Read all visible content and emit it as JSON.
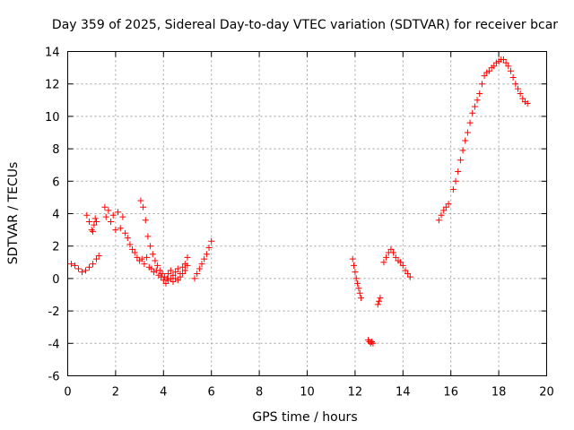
{
  "chart_data": {
    "type": "scatter",
    "title": "Day 359 of 2025, Sidereal Day-to-day VTEC variation (SDTVAR) for receiver bcar",
    "xlabel": "GPS time / hours",
    "ylabel": "SDTVAR / TECUs",
    "xlim": [
      0,
      20
    ],
    "ylim": [
      -6,
      14
    ],
    "xticks": [
      "0",
      "2",
      "4",
      "6",
      "8",
      "10",
      "12",
      "14",
      "16",
      "18",
      "20"
    ],
    "yticks": [
      "-6",
      "-4",
      "-2",
      "0",
      "2",
      "4",
      "6",
      "8",
      "10",
      "12",
      "14"
    ],
    "grid": true,
    "marker": "+",
    "color": "#ff0000",
    "series": [
      {
        "name": "SDTVAR",
        "segments": [
          {
            "x": [
              0.15,
              0.3,
              0.45,
              0.6,
              0.75,
              0.9,
              1.05,
              1.2,
              1.3
            ],
            "y": [
              0.9,
              0.8,
              0.6,
              0.4,
              0.5,
              0.7,
              0.9,
              1.2,
              1.4
            ]
          },
          {
            "x": [
              0.8,
              0.9,
              1.0,
              1.05,
              1.1,
              1.15,
              1.2
            ],
            "y": [
              3.9,
              3.5,
              3.0,
              2.9,
              3.3,
              3.7,
              3.5
            ]
          },
          {
            "x": [
              1.55,
              1.6,
              1.7,
              1.8,
              1.9,
              2.0,
              2.1,
              2.2,
              2.3,
              2.4,
              2.5,
              2.6,
              2.7,
              2.8,
              2.9,
              3.0
            ],
            "y": [
              4.4,
              3.8,
              4.2,
              3.5,
              3.9,
              3.0,
              4.1,
              3.1,
              3.8,
              2.8,
              2.5,
              2.1,
              1.8,
              1.6,
              1.3,
              1.1
            ]
          },
          {
            "x": [
              3.05,
              3.15,
              3.25,
              3.35,
              3.45,
              3.55,
              3.65,
              3.75,
              3.85,
              3.95,
              4.05,
              4.15
            ],
            "y": [
              4.8,
              4.4,
              3.6,
              2.6,
              2.0,
              1.5,
              1.1,
              0.8,
              0.5,
              0.3,
              0.1,
              0.0
            ]
          },
          {
            "x": [
              3.1,
              3.2,
              3.3,
              3.4,
              3.5,
              3.6,
              3.7,
              3.8,
              3.9,
              4.0,
              4.1,
              4.2
            ],
            "y": [
              1.2,
              0.9,
              1.3,
              0.7,
              0.6,
              0.4,
              0.5,
              0.2,
              0.1,
              -0.1,
              -0.3,
              -0.1
            ]
          },
          {
            "x": [
              4.2,
              4.3,
              4.4,
              4.5,
              4.6,
              4.7,
              4.8,
              4.9,
              5.0
            ],
            "y": [
              0.3,
              0.5,
              0.2,
              0.4,
              0.6,
              0.3,
              0.7,
              0.9,
              1.3
            ]
          },
          {
            "x": [
              4.3,
              4.4,
              4.5,
              4.6,
              4.7,
              4.8,
              4.9,
              5.0
            ],
            "y": [
              0.0,
              -0.2,
              0.0,
              -0.1,
              0.1,
              0.3,
              0.5,
              0.8
            ]
          },
          {
            "x": [
              5.3,
              5.4,
              5.5,
              5.6,
              5.7,
              5.8,
              5.9,
              6.0
            ],
            "y": [
              0.0,
              0.3,
              0.6,
              0.9,
              1.2,
              1.5,
              1.9,
              2.3
            ]
          },
          {
            "x": [
              11.9,
              11.95,
              12.0,
              12.05,
              12.1,
              12.15,
              12.2,
              12.25
            ],
            "y": [
              1.2,
              0.8,
              0.4,
              0.0,
              -0.3,
              -0.6,
              -0.9,
              -1.2
            ]
          },
          {
            "x": [
              12.55,
              12.6,
              12.65,
              12.7,
              12.75
            ],
            "y": [
              -3.8,
              -3.9,
              -4.0,
              -3.9,
              -4.0
            ]
          },
          {
            "x": [
              12.95,
              13.0,
              13.05
            ],
            "y": [
              -1.6,
              -1.4,
              -1.2
            ]
          },
          {
            "x": [
              13.2,
              13.3,
              13.4,
              13.5,
              13.6,
              13.7,
              13.8,
              13.9,
              14.0,
              14.1,
              14.2,
              14.3
            ],
            "y": [
              1.0,
              1.3,
              1.6,
              1.8,
              1.6,
              1.3,
              1.1,
              1.0,
              0.8,
              0.5,
              0.3,
              0.1
            ]
          },
          {
            "x": [
              15.5,
              15.6,
              15.7,
              15.8,
              15.9
            ],
            "y": [
              3.6,
              3.9,
              4.2,
              4.4,
              4.6
            ]
          },
          {
            "x": [
              16.1,
              16.2,
              16.3,
              16.4,
              16.5,
              16.6,
              16.7,
              16.8,
              16.9,
              17.0,
              17.1,
              17.2,
              17.3,
              17.4,
              17.5,
              17.6,
              17.7,
              17.8,
              17.9,
              18.0,
              18.1,
              18.2,
              18.3,
              18.4,
              18.5,
              18.6,
              18.7,
              18.8,
              18.9,
              19.0,
              19.1,
              19.2
            ],
            "y": [
              5.5,
              6.0,
              6.6,
              7.3,
              7.9,
              8.5,
              9.0,
              9.6,
              10.2,
              10.6,
              11.0,
              11.4,
              12.0,
              12.5,
              12.7,
              12.8,
              13.0,
              13.1,
              13.3,
              13.4,
              13.5,
              13.5,
              13.3,
              13.1,
              12.8,
              12.4,
              12.0,
              11.7,
              11.4,
              11.1,
              10.9,
              10.8
            ]
          }
        ]
      }
    ]
  }
}
